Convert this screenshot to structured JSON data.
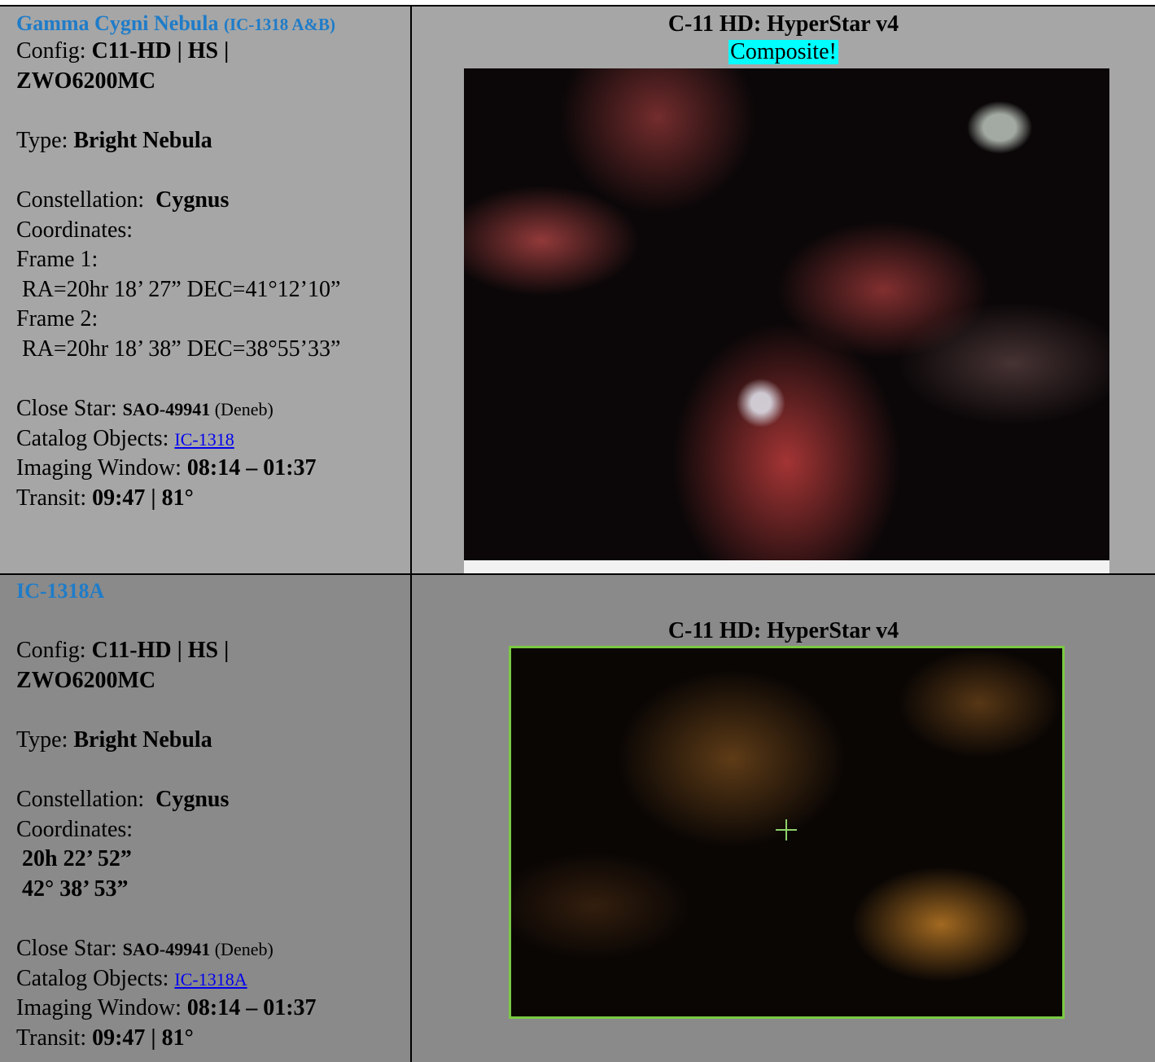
{
  "rows": [
    {
      "title": "Gamma Cygni Nebula",
      "title_note": "(IC-1318 A&B)",
      "config_label": "Config: ",
      "config": "C11-HD | HS | ZWO6200MC",
      "type_label": "Type: ",
      "type": "Bright Nebula",
      "constellation_label": "Constellation:  ",
      "constellation": "Cygnus",
      "coordinates_label": "Coordinates:",
      "coordinates": [
        "Frame 1:",
        " RA=20hr 18’ 27” DEC=41°12’10”",
        "Frame 2:",
        " RA=20hr 18’ 38” DEC=38°55’33”"
      ],
      "close_star_label": "Close Star: ",
      "close_star": "SAO-49941",
      "close_star_note": " (Deneb)",
      "catalog_label": "Catalog Objects: ",
      "catalog": "IC-1318",
      "window_label": "Imaging Window: ",
      "window": "08:14 – 01:37",
      "transit_label": "Transit: ",
      "transit": "09:47 | 81°",
      "scope": "C-11 HD: HyperStar v4",
      "badge": "Composite!"
    },
    {
      "title": "IC-1318A",
      "config_label": "Config: ",
      "config": "C11-HD | HS | ZWO6200MC",
      "type_label": "Type: ",
      "type": "Bright Nebula",
      "constellation_label": "Constellation:  ",
      "constellation": "Cygnus",
      "coordinates_label": "Coordinates:",
      "coordinates": [
        " 20h 22’ 52”",
        " 42° 38’ 53”"
      ],
      "close_star_label": "Close Star: ",
      "close_star": "SAO-49941",
      "close_star_note": " (Deneb)",
      "catalog_label": "Catalog Objects: ",
      "catalog": "IC-1318A",
      "window_label": "Imaging Window: ",
      "window": "08:14 – 01:37",
      "transit_label": "Transit: ",
      "transit": "09:47 | 81°",
      "scope": "C-11 HD: HyperStar v4"
    }
  ]
}
